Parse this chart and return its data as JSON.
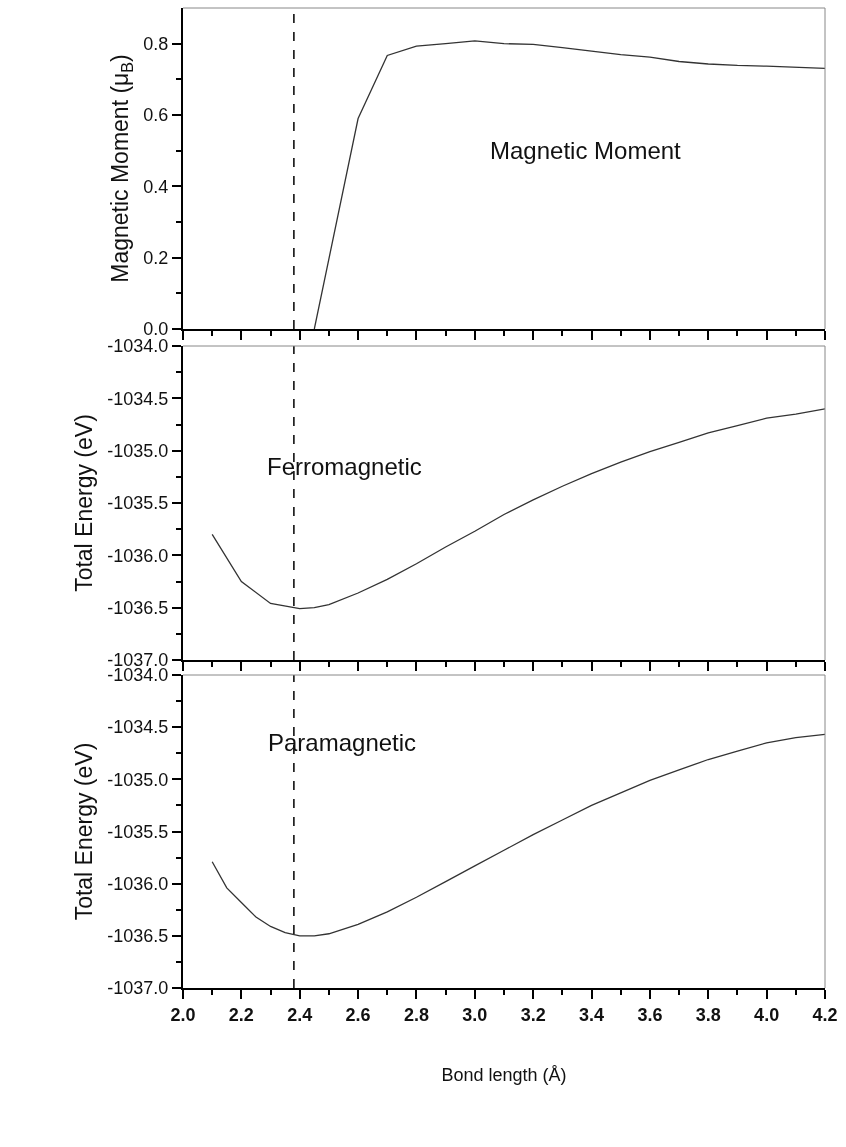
{
  "chart_data": [
    {
      "type": "line",
      "ylabel": "Magnetic Moment (μ$_{B}$)",
      "tick_labels": "y",
      "marker": "none",
      "line_style": "solid",
      "xlim": [
        2.0,
        4.2
      ],
      "xticks": [
        2.0,
        2.2,
        2.4,
        2.6,
        2.8,
        3.0,
        3.2,
        3.4,
        3.6,
        3.8,
        4.0,
        4.2
      ],
      "ylim": [
        0,
        0.9
      ],
      "yticks": [
        "0.0",
        0.2,
        0.4,
        0.6,
        0.8
      ],
      "series": [
        {
          "color": "#333333",
          "x": [
            2.45,
            2.6,
            2.7,
            2.8,
            2.9,
            3.0,
            3.1,
            3.2,
            3.3,
            3.4,
            3.5,
            3.6,
            3.7,
            3.8,
            3.9,
            4.0,
            4.2
          ],
          "values": [
            0,
            0.59,
            0.767,
            0.793,
            0.8,
            0.808,
            0.8,
            0.798,
            0.789,
            0.779,
            0.769,
            0.762,
            0.75,
            0.743,
            0.739,
            0.737,
            0.731
          ]
        }
      ],
      "ref_lines": [
        {
          "axis": "x",
          "value": 2.38,
          "line_style": "dashed",
          "color": "#000000"
        }
      ],
      "annotations": [
        "Magnetic Moment"
      ]
    },
    {
      "type": "line",
      "ylabel": "Total Energy (eV)",
      "tick_labels": "y",
      "marker": "none",
      "line_style": "solid",
      "xlim": [
        2.0,
        4.2
      ],
      "xticks": [
        2.0,
        2.2,
        2.4,
        2.6,
        2.8,
        3.0,
        3.2,
        3.4,
        3.6,
        3.8,
        4.0,
        4.2
      ],
      "ylim": [
        -1037,
        -1034
      ],
      "yticks": [
        {
          "value": -1037,
          "label": "-1037.0"
        },
        -1036.5,
        {
          "value": -1036,
          "label": "-1036.0"
        },
        -1035.5,
        {
          "value": -1035,
          "label": "-1035.0"
        },
        -1034.5,
        {
          "value": -1034,
          "label": "-1034.0"
        }
      ],
      "series": [
        {
          "color": "#333333",
          "x": [
            2.1,
            2.2,
            2.3,
            2.4,
            2.45,
            2.5,
            2.6,
            2.7,
            2.8,
            2.9,
            3.0,
            3.1,
            3.2,
            3.3,
            3.4,
            3.5,
            3.6,
            3.7,
            3.8,
            3.9,
            4.0,
            4.1,
            4.2
          ],
          "values": [
            -1035.8,
            -1036.25,
            -1036.46,
            -1036.51,
            -1036.5,
            -1036.47,
            -1036.36,
            -1036.23,
            -1036.08,
            -1035.92,
            -1035.77,
            -1035.61,
            -1035.47,
            -1035.34,
            -1035.22,
            -1035.11,
            -1035.01,
            -1034.92,
            -1034.83,
            -1034.76,
            -1034.69,
            -1034.65,
            -1034.6
          ]
        }
      ],
      "ref_lines": [
        {
          "axis": "x",
          "value": 2.38,
          "line_style": "dashed",
          "color": "#000000"
        }
      ],
      "annotations": [
        "Ferromagnetic"
      ]
    },
    {
      "type": "line",
      "xlabel": "Bond length (Å)",
      "ylabel": "Total Energy (eV)",
      "marker": "none",
      "line_style": "solid",
      "xlim": [
        2.0,
        4.2
      ],
      "xticks": [
        {
          "value": 2.0,
          "label": "2.0"
        },
        2.2,
        2.4,
        2.6,
        2.8,
        {
          "value": 3.0,
          "label": "3.0"
        },
        3.2,
        3.4,
        3.6,
        3.8,
        {
          "value": 4.0,
          "label": "4.0"
        },
        4.2
      ],
      "ylim": [
        -1037,
        -1034
      ],
      "yticks": [
        {
          "value": -1037,
          "label": "-1037.0"
        },
        -1036.5,
        {
          "value": -1036,
          "label": "-1036.0"
        },
        -1035.5,
        {
          "value": -1035,
          "label": "-1035.0"
        },
        -1034.5,
        {
          "value": -1034,
          "label": "-1034.0"
        }
      ],
      "series": [
        {
          "color": "#333333",
          "x": [
            2.1,
            2.15,
            2.2,
            2.25,
            2.3,
            2.35,
            2.4,
            2.45,
            2.5,
            2.6,
            2.7,
            2.8,
            2.9,
            3.0,
            3.1,
            3.2,
            3.3,
            3.4,
            3.5,
            3.6,
            3.7,
            3.8,
            3.9,
            4.0,
            4.1,
            4.2
          ],
          "values": [
            -1035.79,
            -1036.04,
            -1036.18,
            -1036.32,
            -1036.41,
            -1036.47,
            -1036.5,
            -1036.5,
            -1036.48,
            -1036.39,
            -1036.27,
            -1036.13,
            -1035.98,
            -1035.83,
            -1035.68,
            -1035.53,
            -1035.39,
            -1035.25,
            -1035.13,
            -1035.01,
            -1034.91,
            -1034.81,
            -1034.73,
            -1034.65,
            -1034.6,
            -1034.57
          ]
        }
      ],
      "ref_lines": [
        {
          "axis": "x",
          "value": 2.38,
          "line_style": "dashed",
          "color": "#000000"
        }
      ],
      "annotations": [
        "Paramagnetic"
      ]
    }
  ]
}
